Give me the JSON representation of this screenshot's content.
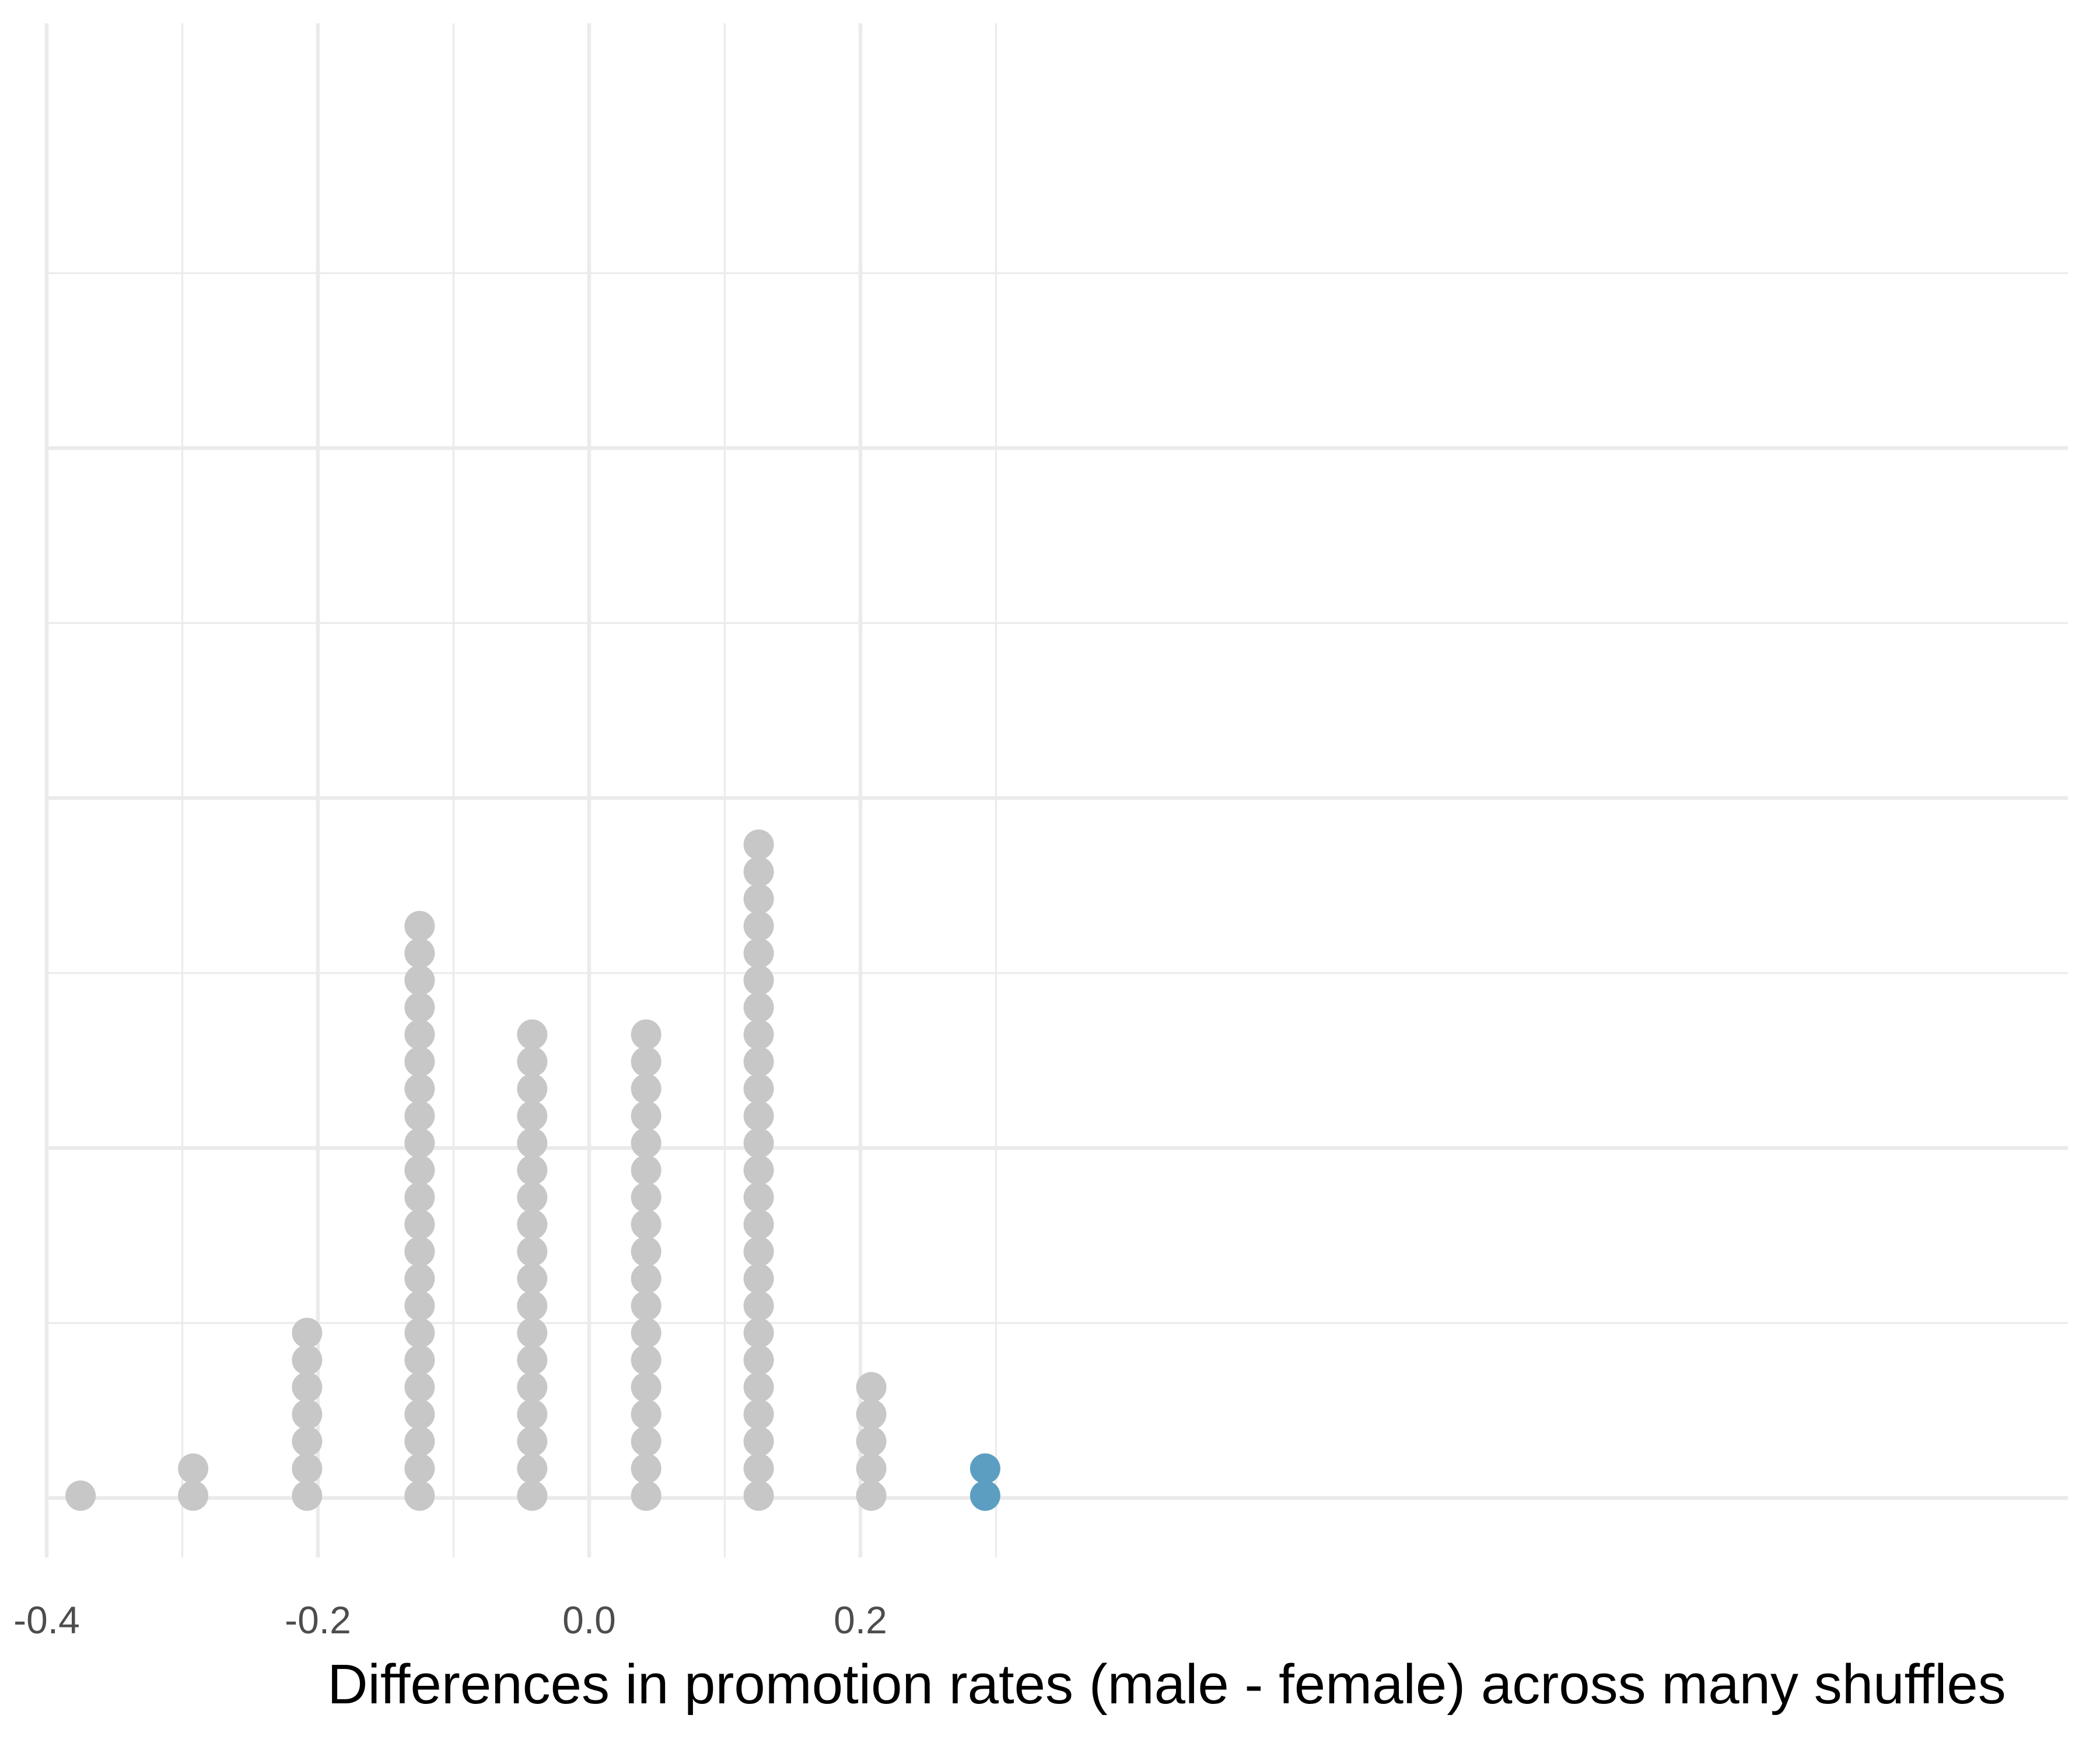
{
  "chart_data": {
    "type": "scatter",
    "subtype": "dot-plot",
    "title": "",
    "xlabel": "Differences in promotion rates (male - female) across many shuffles",
    "ylabel": "",
    "xlim": [
      -0.4,
      0.3
    ],
    "x_ticks": [
      -0.4,
      -0.2,
      0.0,
      0.2
    ],
    "x_tick_labels": [
      "-0.4",
      "-0.2",
      "0.0",
      "0.2"
    ],
    "x_minor_ticks": [
      -0.3,
      -0.1,
      0.1,
      0.3
    ],
    "ylim": [
      0,
      49
    ],
    "y_major_ticks": [
      0,
      13,
      26,
      39
    ],
    "y_minor_ticks": [
      6.5,
      19.5,
      32.5,
      45.5
    ],
    "show_y_labels": false,
    "grid": true,
    "legend": "none",
    "colors": {
      "default": "#c7c7c7",
      "highlight": "#5b9ec2"
    },
    "stacks": [
      {
        "x": -0.375,
        "count": 1,
        "highlight": false
      },
      {
        "x": -0.292,
        "count": 2,
        "highlight": false
      },
      {
        "x": -0.208,
        "count": 7,
        "highlight": false
      },
      {
        "x": -0.125,
        "count": 22,
        "highlight": false
      },
      {
        "x": -0.042,
        "count": 18,
        "highlight": false
      },
      {
        "x": 0.042,
        "count": 18,
        "highlight": false
      },
      {
        "x": 0.125,
        "count": 25,
        "highlight": false
      },
      {
        "x": 0.208,
        "count": 5,
        "highlight": false
      },
      {
        "x": 0.292,
        "count": 2,
        "highlight": true
      }
    ]
  }
}
